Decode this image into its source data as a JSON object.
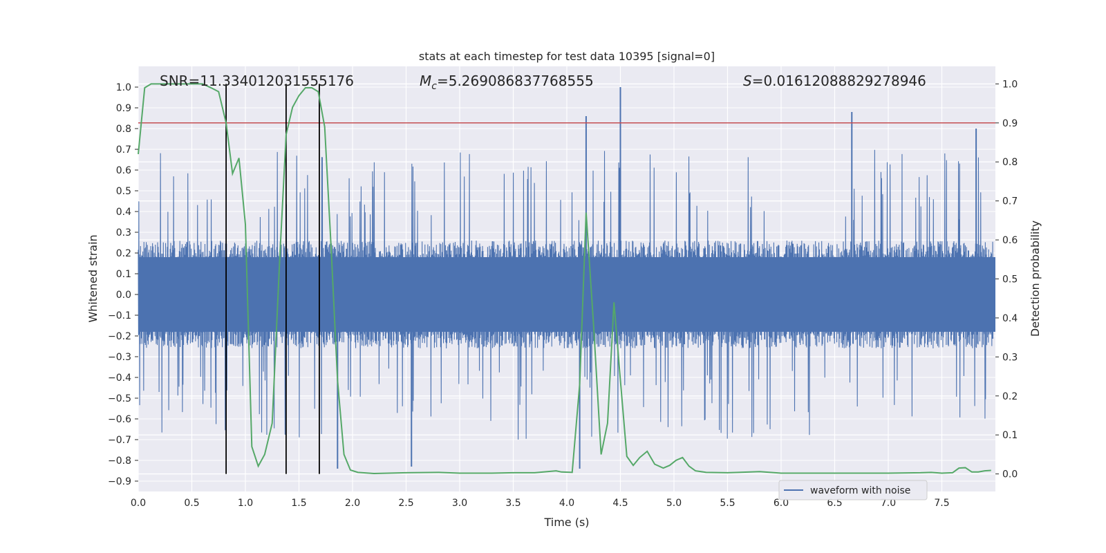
{
  "chart_data": {
    "type": "line",
    "title": "stats at each timestep for test data 10395 [signal=0]",
    "xlabel": "Time (s)",
    "ylabel_left": "Whitened strain",
    "ylabel_right": "Detection probability",
    "xlim": [
      0.0,
      8.0
    ],
    "ylim_left": [
      -0.95,
      1.1
    ],
    "ylim_right": [
      -0.045,
      1.045
    ],
    "xticks": [
      "0.0",
      "0.5",
      "1.0",
      "1.5",
      "2.0",
      "2.5",
      "3.0",
      "3.5",
      "4.0",
      "4.5",
      "5.0",
      "5.5",
      "6.0",
      "6.5",
      "7.0",
      "7.5"
    ],
    "yticks_left": [
      "1.0",
      "0.9",
      "0.8",
      "0.7",
      "0.6",
      "0.5",
      "0.4",
      "0.3",
      "0.2",
      "0.1",
      "0.0",
      "−0.1",
      "−0.2",
      "−0.3",
      "−0.4",
      "−0.5",
      "−0.6",
      "−0.7",
      "−0.8",
      "−0.9"
    ],
    "yticks_right": [
      "1.0",
      "0.9",
      "0.8",
      "0.7",
      "0.6",
      "0.5",
      "0.4",
      "0.3",
      "0.2",
      "0.1",
      "0.0"
    ],
    "grid": true,
    "legend_placement": "lower-right",
    "annotations": {
      "snr": "SNR=11.334012031555176",
      "mc_symbol": "M",
      "mc_sub": "c",
      "mc_value": "=5.269086837768555",
      "s_symbol": "S",
      "s_value": "=0.01612088829278946"
    },
    "threshold_right": 0.9,
    "vertical_markers_x": [
      0.82,
      1.38,
      1.69
    ],
    "series": [
      {
        "name": "waveform with noise",
        "color": "#4c72b0",
        "kind": "noisy-strain",
        "approx_amplitude": 0.26,
        "peak_spikes": [
          {
            "x": 4.18,
            "y": 0.86
          },
          {
            "x": 4.5,
            "y": 1.0
          },
          {
            "x": 6.66,
            "y": 0.88
          },
          {
            "x": 7.82,
            "y": 0.8
          },
          {
            "x": 1.86,
            "y": -0.84
          },
          {
            "x": 4.12,
            "y": -0.84
          },
          {
            "x": 2.55,
            "y": -0.83
          }
        ]
      },
      {
        "color": "#55a868",
        "axis": "right",
        "x": [
          0.0,
          0.06,
          0.12,
          0.2,
          0.3,
          0.4,
          0.5,
          0.6,
          0.68,
          0.75,
          0.82,
          0.88,
          0.94,
          1.0,
          1.06,
          1.12,
          1.18,
          1.25,
          1.32,
          1.38,
          1.44,
          1.5,
          1.56,
          1.62,
          1.68,
          1.74,
          1.8,
          1.86,
          1.92,
          1.98,
          2.05,
          2.2,
          2.5,
          2.8,
          3.0,
          3.3,
          3.5,
          3.7,
          3.9,
          3.95,
          4.05,
          4.12,
          4.18,
          4.25,
          4.32,
          4.38,
          4.44,
          4.5,
          4.56,
          4.62,
          4.68,
          4.75,
          4.82,
          4.9,
          4.96,
          5.02,
          5.08,
          5.14,
          5.2,
          5.3,
          5.5,
          5.6,
          5.8,
          6.0,
          6.5,
          7.0,
          7.3,
          7.4,
          7.5,
          7.6,
          7.66,
          7.72,
          7.78,
          7.84,
          7.9,
          7.96
        ],
        "values": [
          0.82,
          0.99,
          1.0,
          1.0,
          1.0,
          1.0,
          1.0,
          1.0,
          0.99,
          0.98,
          0.9,
          0.77,
          0.81,
          0.64,
          0.07,
          0.02,
          0.05,
          0.13,
          0.55,
          0.87,
          0.94,
          0.97,
          0.99,
          0.99,
          0.98,
          0.89,
          0.58,
          0.24,
          0.05,
          0.01,
          0.004,
          0.001,
          0.003,
          0.004,
          0.002,
          0.002,
          0.003,
          0.003,
          0.008,
          0.005,
          0.004,
          0.23,
          0.67,
          0.38,
          0.05,
          0.13,
          0.44,
          0.24,
          0.045,
          0.022,
          0.042,
          0.058,
          0.025,
          0.015,
          0.022,
          0.035,
          0.042,
          0.02,
          0.008,
          0.004,
          0.003,
          0.004,
          0.006,
          0.002,
          0.002,
          0.002,
          0.003,
          0.004,
          0.002,
          0.003,
          0.015,
          0.016,
          0.005,
          0.005,
          0.008,
          0.009
        ]
      }
    ]
  }
}
